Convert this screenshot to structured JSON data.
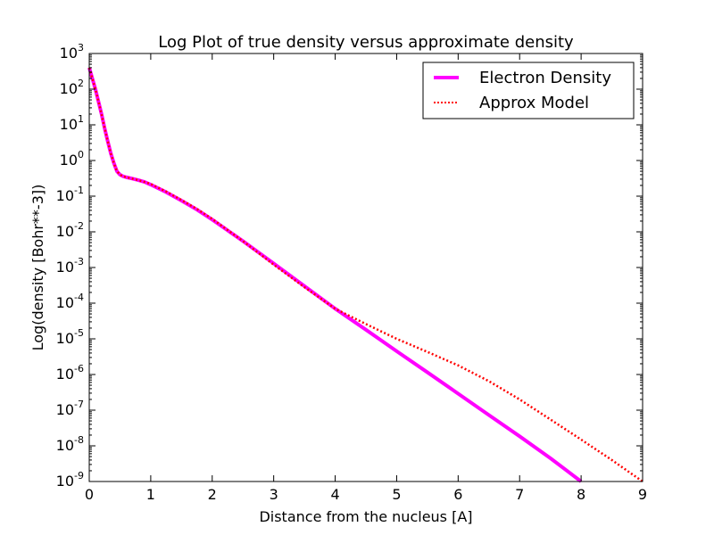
{
  "chart_data": {
    "type": "line",
    "title": "Log Plot of true density versus approximate density",
    "xlabel": "Distance from the nucleus [A]",
    "ylabel": "Log(density [Bohr**-3])",
    "xlim": [
      0,
      9
    ],
    "ylim_log10": [
      -9,
      3
    ],
    "yscale": "log",
    "grid": false,
    "legend_position": "upper right",
    "x_ticks": [
      "0",
      "1",
      "2",
      "3",
      "4",
      "5",
      "6",
      "7",
      "8",
      "9"
    ],
    "y_ticks": [
      {
        "base": "10",
        "exp": "3"
      },
      {
        "base": "10",
        "exp": "2"
      },
      {
        "base": "10",
        "exp": "1"
      },
      {
        "base": "10",
        "exp": "0"
      },
      {
        "base": "10",
        "exp": "-1"
      },
      {
        "base": "10",
        "exp": "-2"
      },
      {
        "base": "10",
        "exp": "-3"
      },
      {
        "base": "10",
        "exp": "-4"
      },
      {
        "base": "10",
        "exp": "-5"
      },
      {
        "base": "10",
        "exp": "-6"
      },
      {
        "base": "10",
        "exp": "-7"
      },
      {
        "base": "10",
        "exp": "-8"
      },
      {
        "base": "10",
        "exp": "-9"
      }
    ],
    "series": [
      {
        "name": "Electron Density",
        "color": "#ff00ff",
        "style": "solid",
        "x": [
          0,
          0.05,
          0.1,
          0.15,
          0.2,
          0.25,
          0.3,
          0.35,
          0.4,
          0.45,
          0.5,
          0.55,
          0.6,
          0.7,
          0.8,
          0.9,
          1.0,
          1.25,
          1.5,
          1.75,
          2.0,
          2.5,
          3.0,
          3.5,
          4.0,
          4.5,
          5.0,
          5.5,
          6.0,
          6.5,
          7.0,
          7.5,
          8.0
        ],
        "y": [
          400,
          200,
          100,
          45,
          20,
          8,
          3.5,
          1.6,
          0.85,
          0.5,
          0.4,
          0.36,
          0.34,
          0.31,
          0.28,
          0.25,
          0.21,
          0.13,
          0.075,
          0.042,
          0.022,
          0.0055,
          0.0013,
          0.0003,
          7e-05,
          1.8e-05,
          4.5e-06,
          1.15e-06,
          2.9e-07,
          7.3e-08,
          1.85e-08,
          4.5e-09,
          1e-09
        ]
      },
      {
        "name": "Approx Model",
        "color": "#ff0000",
        "style": "dotted",
        "x": [
          0,
          0.05,
          0.1,
          0.15,
          0.2,
          0.25,
          0.3,
          0.35,
          0.4,
          0.45,
          0.5,
          0.55,
          0.6,
          0.7,
          0.8,
          0.9,
          1.0,
          1.25,
          1.5,
          1.75,
          2.0,
          2.5,
          3.0,
          3.5,
          4.0,
          4.5,
          5.0,
          5.5,
          6.0,
          6.5,
          7.0,
          7.5,
          8.0,
          8.5,
          9.0
        ],
        "y": [
          400,
          200,
          100,
          45,
          20,
          8,
          3.5,
          1.6,
          0.85,
          0.5,
          0.4,
          0.36,
          0.34,
          0.31,
          0.28,
          0.25,
          0.22,
          0.135,
          0.078,
          0.044,
          0.023,
          0.0055,
          0.0012,
          0.00028,
          7e-05,
          2.6e-05,
          1e-05,
          4.3e-06,
          1.8e-06,
          6.5e-07,
          2e-07,
          5.5e-08,
          1.5e-08,
          4e-09,
          1e-09
        ]
      }
    ]
  }
}
